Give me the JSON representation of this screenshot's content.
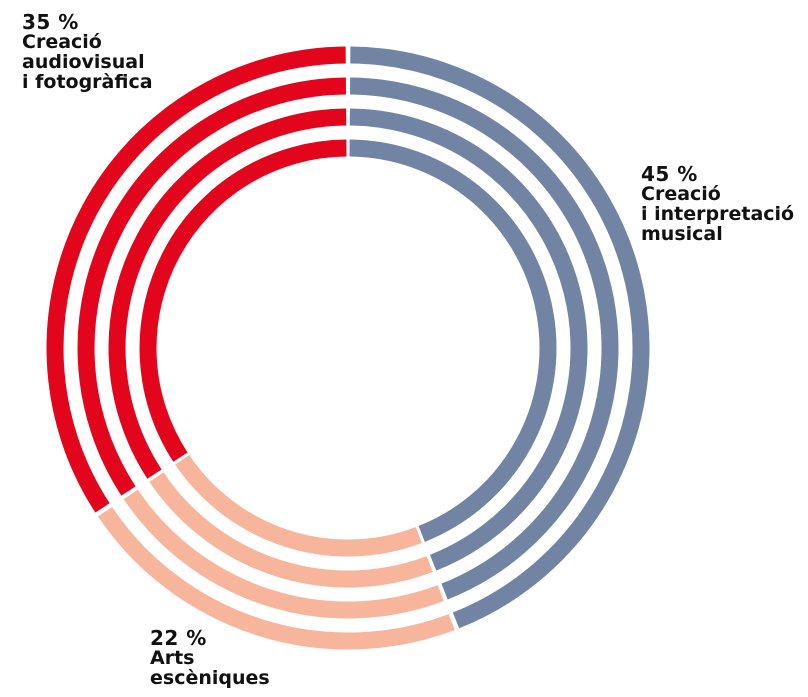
{
  "chart_data": {
    "type": "pie",
    "variant": "concentric-rings",
    "ring_count": 4,
    "series": [
      {
        "name": "Creació i interpretació musical",
        "value": 45,
        "value_label": "45 %",
        "label_lines": [
          "Creació",
          "i interpretació",
          "musical"
        ],
        "color": "#7284a3"
      },
      {
        "name": "Arts escèniques",
        "value": 22,
        "value_label": "22 %",
        "label_lines": [
          "Arts",
          "escèniques"
        ],
        "color": "#f7b59b"
      },
      {
        "name": "Creació audiovisual i fotogràfica",
        "value": 35,
        "value_label": "35 %",
        "label_lines": [
          "Creació",
          "audiovisual",
          "i fotogràfica"
        ],
        "color": "#e3051b"
      }
    ]
  }
}
